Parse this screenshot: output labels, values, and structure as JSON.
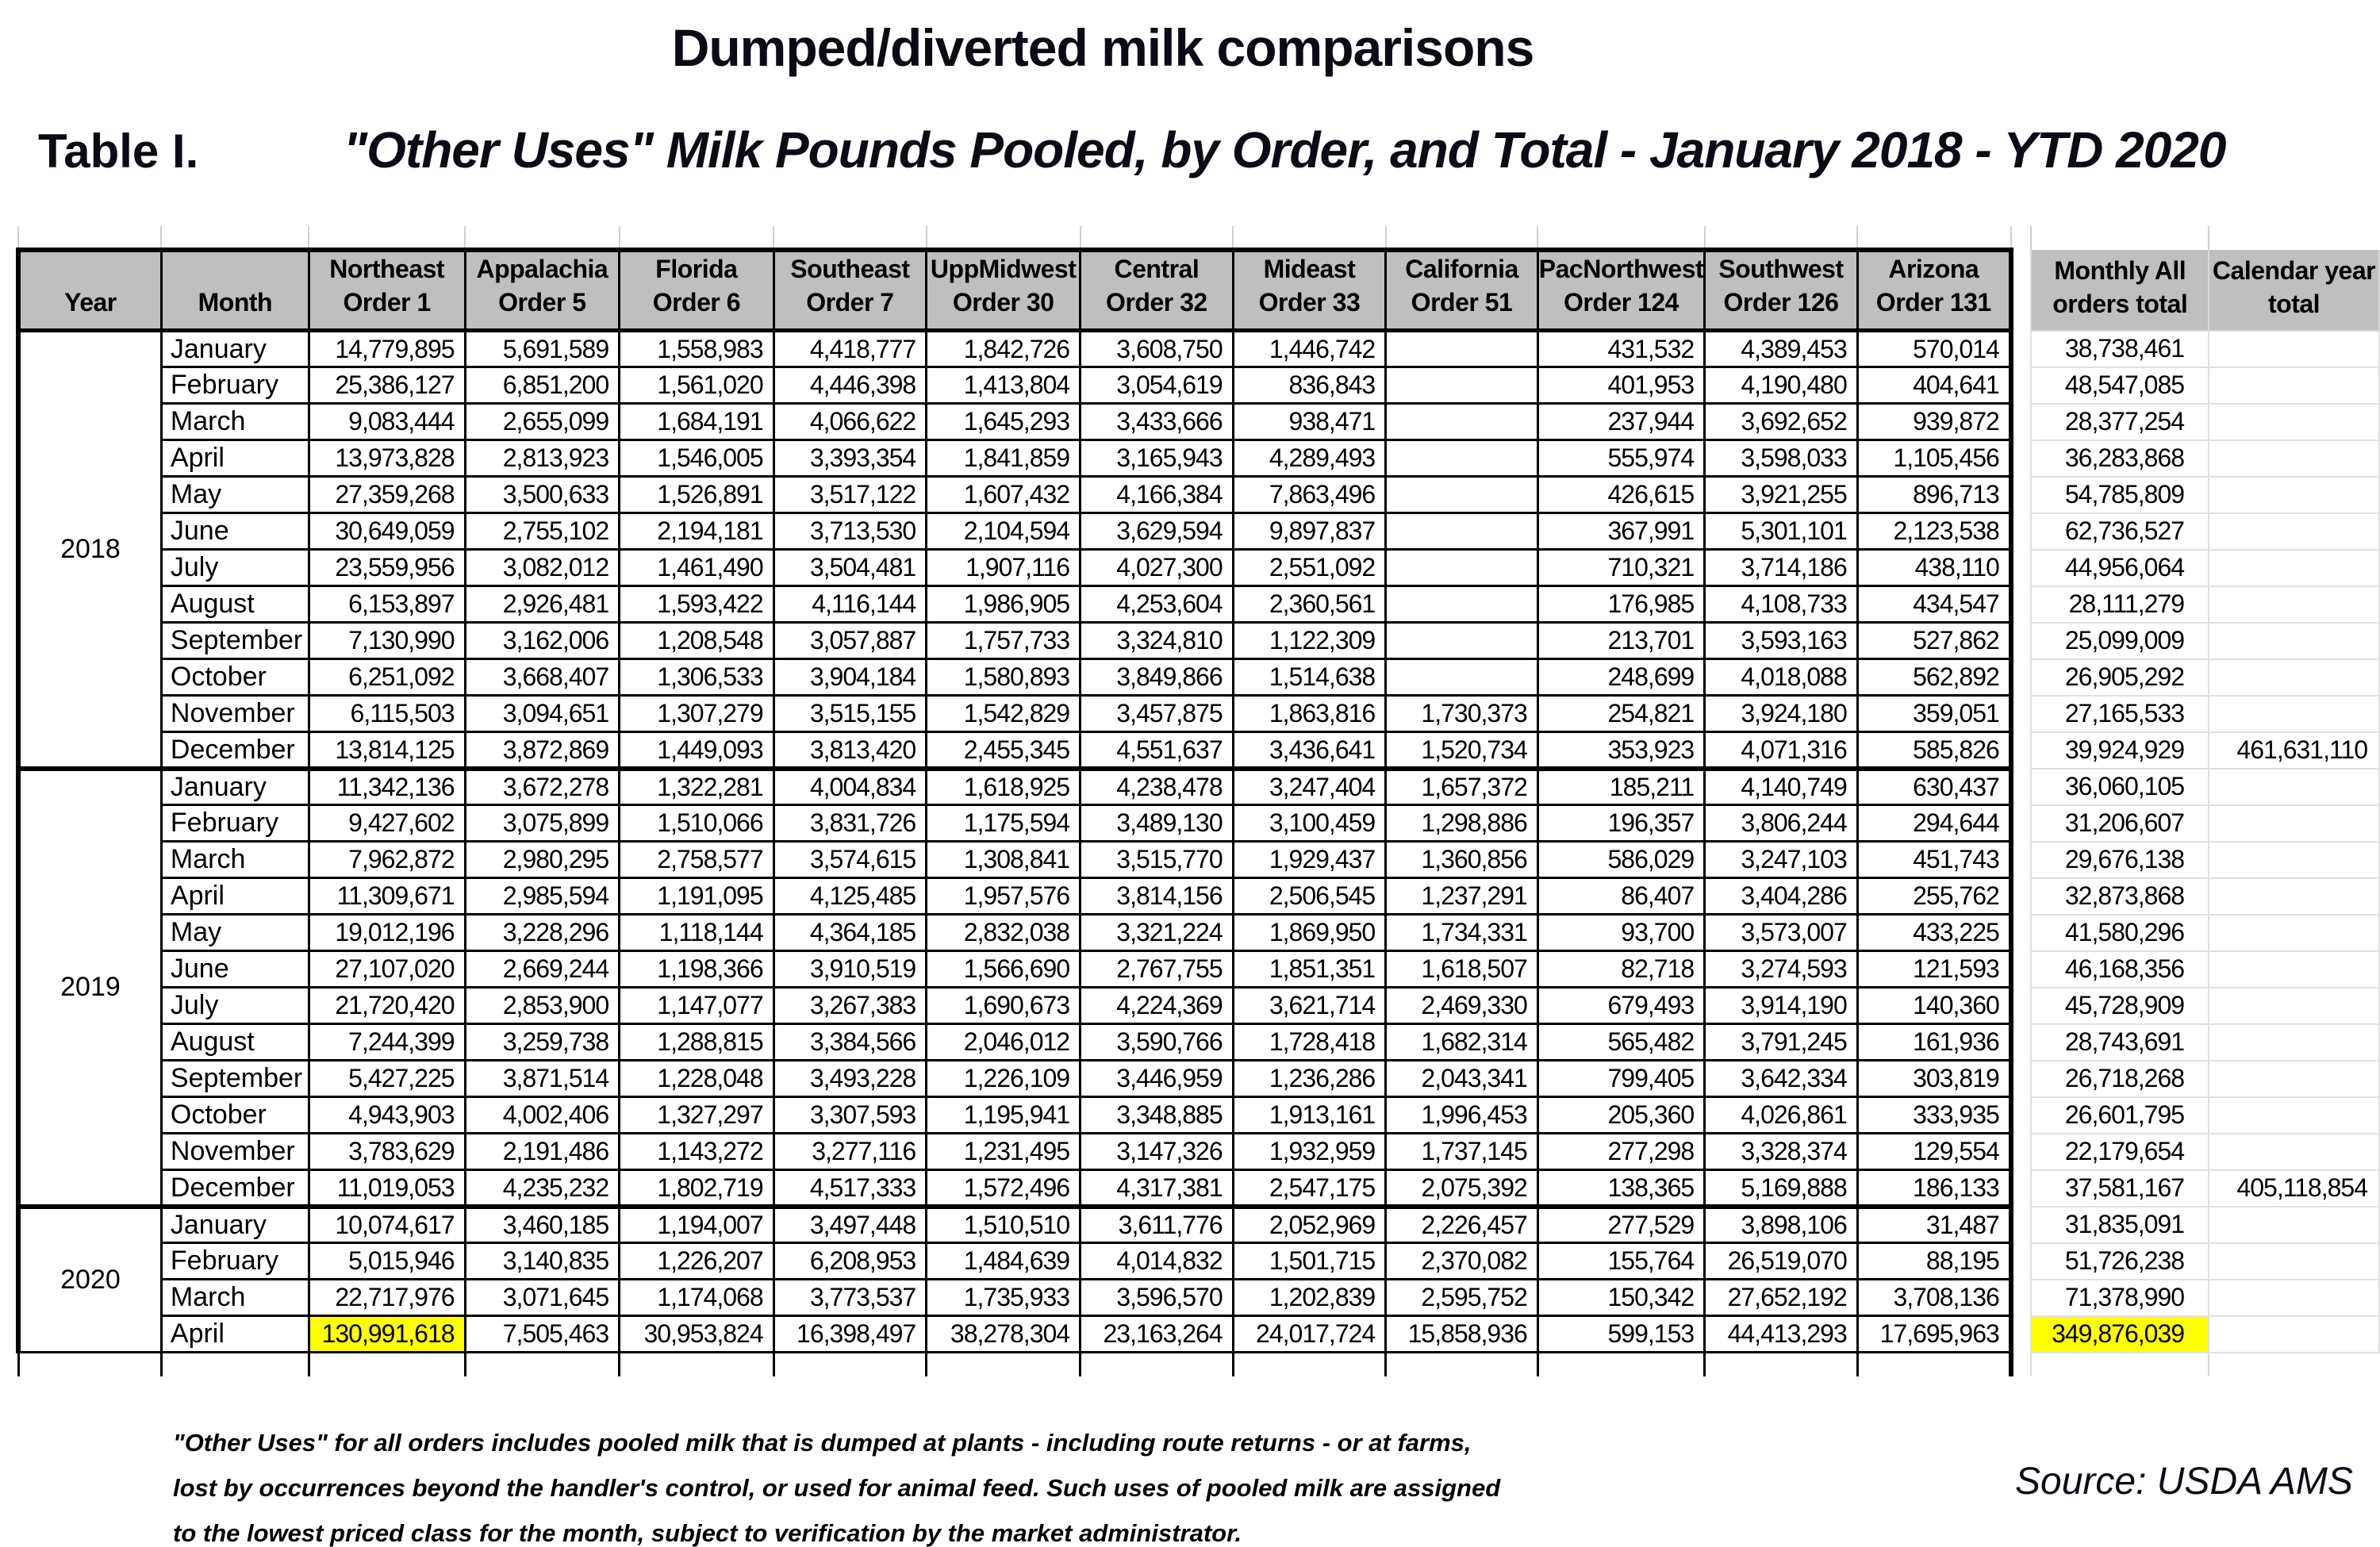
{
  "title": "Dumped/diverted milk comparisons",
  "table_label": "Table I.",
  "subtitle": "\"Other Uses\" Milk Pounds Pooled, by Order, and Total - January 2018 - YTD 2020",
  "source": "Source: USDA AMS",
  "footnote_lines": [
    "\"Other Uses\" for all orders includes pooled milk that is dumped at plants - including route returns - or at farms,",
    "lost by occurrences beyond the handler's control, or used for animal feed.  Such uses of pooled milk are assigned",
    "to the lowest priced class for the month, subject to verification by the market administrator."
  ],
  "colors": {
    "header_bg": "#bfbfbf",
    "highlight": "#ffff00",
    "border": "#000000",
    "light_grid": "#d9d9d9"
  },
  "chart_data": {
    "type": "table",
    "columns": [
      {
        "lines": [
          "Year"
        ],
        "kind": "main"
      },
      {
        "lines": [
          "Month"
        ],
        "kind": "main"
      },
      {
        "lines": [
          "Northeast",
          "Order 1"
        ],
        "kind": "main"
      },
      {
        "lines": [
          "Appalachia",
          "Order 5"
        ],
        "kind": "main"
      },
      {
        "lines": [
          "Florida",
          "Order 6"
        ],
        "kind": "main"
      },
      {
        "lines": [
          "Southeast",
          "Order 7"
        ],
        "kind": "main"
      },
      {
        "lines": [
          "UppMidwest",
          "Order 30"
        ],
        "kind": "main"
      },
      {
        "lines": [
          "Central",
          "Order 32"
        ],
        "kind": "main"
      },
      {
        "lines": [
          "Mideast",
          "Order 33"
        ],
        "kind": "main"
      },
      {
        "lines": [
          "California",
          "Order 51"
        ],
        "kind": "main"
      },
      {
        "lines": [
          "PacNorthwest",
          "Order 124"
        ],
        "kind": "main"
      },
      {
        "lines": [
          "Southwest",
          "Order 126"
        ],
        "kind": "main"
      },
      {
        "lines": [
          "Arizona",
          "Order 131"
        ],
        "kind": "main"
      },
      {
        "lines": [],
        "kind": "gap"
      },
      {
        "lines": [
          "Monthly All",
          "orders total"
        ],
        "kind": "monthly"
      },
      {
        "lines": [
          "Calendar year",
          "total"
        ],
        "kind": "cal"
      }
    ],
    "years": [
      {
        "year": "2018",
        "months": [
          {
            "m": "January",
            "v": [
              "14,779,895",
              "5,691,589",
              "1,558,983",
              "4,418,777",
              "1,842,726",
              "3,608,750",
              "1,446,742",
              "",
              "431,532",
              "4,389,453",
              "570,014",
              "38,738,461",
              ""
            ]
          },
          {
            "m": "February",
            "v": [
              "25,386,127",
              "6,851,200",
              "1,561,020",
              "4,446,398",
              "1,413,804",
              "3,054,619",
              "836,843",
              "",
              "401,953",
              "4,190,480",
              "404,641",
              "48,547,085",
              ""
            ]
          },
          {
            "m": "March",
            "v": [
              "9,083,444",
              "2,655,099",
              "1,684,191",
              "4,066,622",
              "1,645,293",
              "3,433,666",
              "938,471",
              "",
              "237,944",
              "3,692,652",
              "939,872",
              "28,377,254",
              ""
            ]
          },
          {
            "m": "April",
            "v": [
              "13,973,828",
              "2,813,923",
              "1,546,005",
              "3,393,354",
              "1,841,859",
              "3,165,943",
              "4,289,493",
              "",
              "555,974",
              "3,598,033",
              "1,105,456",
              "36,283,868",
              ""
            ]
          },
          {
            "m": "May",
            "v": [
              "27,359,268",
              "3,500,633",
              "1,526,891",
              "3,517,122",
              "1,607,432",
              "4,166,384",
              "7,863,496",
              "",
              "426,615",
              "3,921,255",
              "896,713",
              "54,785,809",
              ""
            ]
          },
          {
            "m": "June",
            "v": [
              "30,649,059",
              "2,755,102",
              "2,194,181",
              "3,713,530",
              "2,104,594",
              "3,629,594",
              "9,897,837",
              "",
              "367,991",
              "5,301,101",
              "2,123,538",
              "62,736,527",
              ""
            ]
          },
          {
            "m": "July",
            "v": [
              "23,559,956",
              "3,082,012",
              "1,461,490",
              "3,504,481",
              "1,907,116",
              "4,027,300",
              "2,551,092",
              "",
              "710,321",
              "3,714,186",
              "438,110",
              "44,956,064",
              ""
            ]
          },
          {
            "m": "August",
            "v": [
              "6,153,897",
              "2,926,481",
              "1,593,422",
              "4,116,144",
              "1,986,905",
              "4,253,604",
              "2,360,561",
              "",
              "176,985",
              "4,108,733",
              "434,547",
              "28,111,279",
              ""
            ]
          },
          {
            "m": "September",
            "v": [
              "7,130,990",
              "3,162,006",
              "1,208,548",
              "3,057,887",
              "1,757,733",
              "3,324,810",
              "1,122,309",
              "",
              "213,701",
              "3,593,163",
              "527,862",
              "25,099,009",
              ""
            ]
          },
          {
            "m": "October",
            "v": [
              "6,251,092",
              "3,668,407",
              "1,306,533",
              "3,904,184",
              "1,580,893",
              "3,849,866",
              "1,514,638",
              "",
              "248,699",
              "4,018,088",
              "562,892",
              "26,905,292",
              ""
            ]
          },
          {
            "m": "November",
            "v": [
              "6,115,503",
              "3,094,651",
              "1,307,279",
              "3,515,155",
              "1,542,829",
              "3,457,875",
              "1,863,816",
              "1,730,373",
              "254,821",
              "3,924,180",
              "359,051",
              "27,165,533",
              ""
            ]
          },
          {
            "m": "December",
            "v": [
              "13,814,125",
              "3,872,869",
              "1,449,093",
              "3,813,420",
              "2,455,345",
              "4,551,637",
              "3,436,641",
              "1,520,734",
              "353,923",
              "4,071,316",
              "585,826",
              "39,924,929",
              "461,631,110"
            ]
          }
        ]
      },
      {
        "year": "2019",
        "months": [
          {
            "m": "January",
            "v": [
              "11,342,136",
              "3,672,278",
              "1,322,281",
              "4,004,834",
              "1,618,925",
              "4,238,478",
              "3,247,404",
              "1,657,372",
              "185,211",
              "4,140,749",
              "630,437",
              "36,060,105",
              ""
            ]
          },
          {
            "m": "February",
            "v": [
              "9,427,602",
              "3,075,899",
              "1,510,066",
              "3,831,726",
              "1,175,594",
              "3,489,130",
              "3,100,459",
              "1,298,886",
              "196,357",
              "3,806,244",
              "294,644",
              "31,206,607",
              ""
            ]
          },
          {
            "m": "March",
            "v": [
              "7,962,872",
              "2,980,295",
              "2,758,577",
              "3,574,615",
              "1,308,841",
              "3,515,770",
              "1,929,437",
              "1,360,856",
              "586,029",
              "3,247,103",
              "451,743",
              "29,676,138",
              ""
            ]
          },
          {
            "m": "April",
            "v": [
              "11,309,671",
              "2,985,594",
              "1,191,095",
              "4,125,485",
              "1,957,576",
              "3,814,156",
              "2,506,545",
              "1,237,291",
              "86,407",
              "3,404,286",
              "255,762",
              "32,873,868",
              ""
            ]
          },
          {
            "m": "May",
            "v": [
              "19,012,196",
              "3,228,296",
              "1,118,144",
              "4,364,185",
              "2,832,038",
              "3,321,224",
              "1,869,950",
              "1,734,331",
              "93,700",
              "3,573,007",
              "433,225",
              "41,580,296",
              ""
            ]
          },
          {
            "m": "June",
            "v": [
              "27,107,020",
              "2,669,244",
              "1,198,366",
              "3,910,519",
              "1,566,690",
              "2,767,755",
              "1,851,351",
              "1,618,507",
              "82,718",
              "3,274,593",
              "121,593",
              "46,168,356",
              ""
            ]
          },
          {
            "m": "July",
            "v": [
              "21,720,420",
              "2,853,900",
              "1,147,077",
              "3,267,383",
              "1,690,673",
              "4,224,369",
              "3,621,714",
              "2,469,330",
              "679,493",
              "3,914,190",
              "140,360",
              "45,728,909",
              ""
            ]
          },
          {
            "m": "August",
            "v": [
              "7,244,399",
              "3,259,738",
              "1,288,815",
              "3,384,566",
              "2,046,012",
              "3,590,766",
              "1,728,418",
              "1,682,314",
              "565,482",
              "3,791,245",
              "161,936",
              "28,743,691",
              ""
            ]
          },
          {
            "m": "September",
            "v": [
              "5,427,225",
              "3,871,514",
              "1,228,048",
              "3,493,228",
              "1,226,109",
              "3,446,959",
              "1,236,286",
              "2,043,341",
              "799,405",
              "3,642,334",
              "303,819",
              "26,718,268",
              ""
            ]
          },
          {
            "m": "October",
            "v": [
              "4,943,903",
              "4,002,406",
              "1,327,297",
              "3,307,593",
              "1,195,941",
              "3,348,885",
              "1,913,161",
              "1,996,453",
              "205,360",
              "4,026,861",
              "333,935",
              "26,601,795",
              ""
            ]
          },
          {
            "m": "November",
            "v": [
              "3,783,629",
              "2,191,486",
              "1,143,272",
              "3,277,116",
              "1,231,495",
              "3,147,326",
              "1,932,959",
              "1,737,145",
              "277,298",
              "3,328,374",
              "129,554",
              "22,179,654",
              ""
            ]
          },
          {
            "m": "December",
            "v": [
              "11,019,053",
              "4,235,232",
              "1,802,719",
              "4,517,333",
              "1,572,496",
              "4,317,381",
              "2,547,175",
              "2,075,392",
              "138,365",
              "5,169,888",
              "186,133",
              "37,581,167",
              "405,118,854"
            ]
          }
        ]
      },
      {
        "year": "2020",
        "months": [
          {
            "m": "January",
            "v": [
              "10,074,617",
              "3,460,185",
              "1,194,007",
              "3,497,448",
              "1,510,510",
              "3,611,776",
              "2,052,969",
              "2,226,457",
              "277,529",
              "3,898,106",
              "31,487",
              "31,835,091",
              ""
            ]
          },
          {
            "m": "February",
            "v": [
              "5,015,946",
              "3,140,835",
              "1,226,207",
              "6,208,953",
              "1,484,639",
              "4,014,832",
              "1,501,715",
              "2,370,082",
              "155,764",
              "26,519,070",
              "88,195",
              "51,726,238",
              ""
            ]
          },
          {
            "m": "March",
            "v": [
              "22,717,976",
              "3,071,645",
              "1,174,068",
              "3,773,537",
              "1,735,933",
              "3,596,570",
              "1,202,839",
              "2,595,752",
              "150,342",
              "27,652,192",
              "3,708,136",
              "71,378,990",
              ""
            ]
          },
          {
            "m": "April",
            "v": [
              "130,991,618",
              "7,505,463",
              "30,953,824",
              "16,398,497",
              "38,278,304",
              "23,163,264",
              "24,017,724",
              "15,858,936",
              "599,153",
              "44,413,293",
              "17,695,963",
              "349,876,039",
              ""
            ],
            "hl": [
              0,
              11
            ]
          }
        ]
      }
    ]
  }
}
